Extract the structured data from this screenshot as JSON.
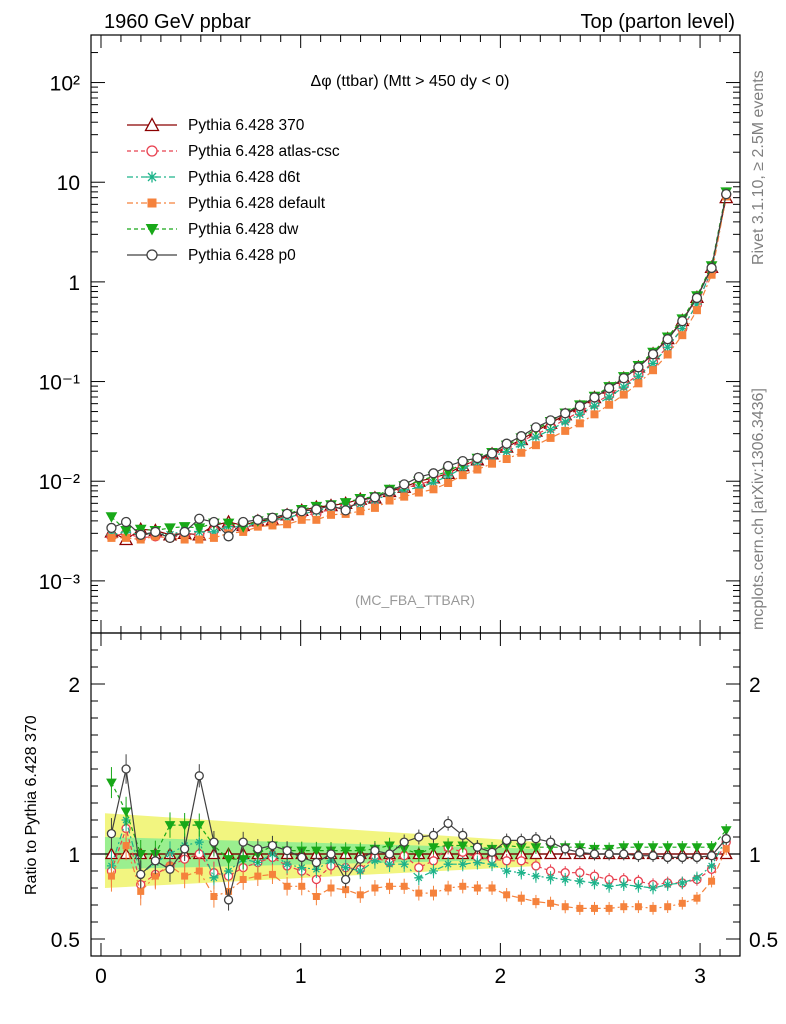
{
  "header": {
    "left": "1960 GeV ppbar",
    "right": "Top (parton level)"
  },
  "side": {
    "rivet": "Rivet 3.1.10, ≥ 2.5M events",
    "mcplots": "mcplots.cern.ch [arXiv:1306.3436]"
  },
  "chart_data": {
    "type": "line",
    "title": "Δφ (ttbar) (Mtt > 450 dy < 0)",
    "watermark": "(MC_FBA_TTBAR)",
    "xlabel": "",
    "ylabel": "",
    "ratio_ylabel": "Ratio to Pythia 6.428 370",
    "xlim": [
      -0.05,
      3.2
    ],
    "ylim_main": [
      0.0003,
      300
    ],
    "ylim_ratio": [
      0.4,
      2.3
    ],
    "yscale_main": "log",
    "legend_position": "top-left",
    "x_ticks": [
      "0",
      "1",
      "2",
      "3"
    ],
    "y_ticks_main": [
      "10⁻³",
      "10⁻²",
      "10⁻¹",
      "1",
      "10",
      "10²"
    ],
    "y_ticks_ratio": [
      "0.5",
      "1",
      "2"
    ],
    "x": [
      0.0524,
      0.1257,
      0.199,
      0.2723,
      0.3456,
      0.4189,
      0.4922,
      0.5655,
      0.6388,
      0.7121,
      0.7854,
      0.8587,
      0.932,
      1.0053,
      1.0786,
      1.1519,
      1.2252,
      1.2985,
      1.3718,
      1.4451,
      1.5184,
      1.5917,
      1.665,
      1.7383,
      1.8116,
      1.8849,
      1.9582,
      2.0315,
      2.1048,
      2.1781,
      2.2514,
      2.3247,
      2.398,
      2.4713,
      2.5446,
      2.6179,
      2.6912,
      2.7645,
      2.8378,
      2.9111,
      2.9844,
      3.0577,
      3.131
    ],
    "series": [
      {
        "name": "Pythia 6.428 370",
        "color": "#8b0000",
        "marker": "triangle-open",
        "dash": "solid",
        "values": [
          0.0031,
          0.0026,
          0.0033,
          0.0032,
          0.0029,
          0.003,
          0.0029,
          0.0036,
          0.0039,
          0.0036,
          0.004,
          0.0041,
          0.0046,
          0.0051,
          0.0055,
          0.0057,
          0.006,
          0.0066,
          0.0068,
          0.0079,
          0.0087,
          0.01,
          0.0108,
          0.012,
          0.0143,
          0.0164,
          0.0188,
          0.022,
          0.0262,
          0.0318,
          0.0382,
          0.0465,
          0.056,
          0.069,
          0.086,
          0.108,
          0.14,
          0.19,
          0.27,
          0.41,
          0.7,
          1.4,
          7.0
        ],
        "ratio": [
          1.0,
          1.0,
          1.0,
          1.0,
          1.0,
          1.0,
          1.0,
          1.0,
          1.0,
          1.0,
          1.0,
          1.0,
          1.0,
          1.0,
          1.0,
          1.0,
          1.0,
          1.0,
          1.0,
          1.0,
          1.0,
          1.0,
          1.0,
          1.0,
          1.0,
          1.0,
          1.0,
          1.0,
          1.0,
          1.0,
          1.0,
          1.0,
          1.0,
          1.0,
          1.0,
          1.0,
          1.0,
          1.0,
          1.0,
          1.0,
          1.0,
          1.0,
          1.0
        ]
      },
      {
        "name": "Pythia 6.428 atlas-csc",
        "color": "#e8404f",
        "marker": "circle-open",
        "dash": "dash",
        "values": [
          0.0028,
          0.003,
          0.0027,
          0.0028,
          0.0027,
          0.0029,
          0.0029,
          0.0032,
          0.0034,
          0.0033,
          0.0038,
          0.004,
          0.0043,
          0.0046,
          0.0047,
          0.0053,
          0.0055,
          0.006,
          0.0067,
          0.0075,
          0.0086,
          0.0092,
          0.0104,
          0.0125,
          0.0145,
          0.016,
          0.0183,
          0.0211,
          0.0252,
          0.0295,
          0.0345,
          0.0416,
          0.0497,
          0.0603,
          0.0731,
          0.0923,
          0.117,
          0.156,
          0.224,
          0.342,
          0.595,
          1.28,
          7.5
        ],
        "ratio": [
          0.9,
          1.15,
          0.82,
          0.88,
          0.93,
          0.97,
          1.0,
          0.89,
          0.87,
          0.92,
          0.95,
          0.98,
          0.93,
          0.9,
          0.85,
          0.93,
          0.92,
          0.91,
          0.98,
          0.95,
          0.99,
          0.92,
          0.96,
          1.04,
          1.01,
          0.98,
          0.97,
          0.96,
          0.96,
          0.93,
          0.9,
          0.89,
          0.89,
          0.87,
          0.85,
          0.85,
          0.84,
          0.82,
          0.83,
          0.83,
          0.85,
          0.91,
          1.07
        ]
      },
      {
        "name": "Pythia 6.428 d6t",
        "color": "#1db38a",
        "marker": "star",
        "dash": "dashdot",
        "values": [
          0.0029,
          0.0031,
          0.0029,
          0.003,
          0.0029,
          0.0032,
          0.0031,
          0.0031,
          0.0035,
          0.0035,
          0.0038,
          0.0041,
          0.0043,
          0.0047,
          0.005,
          0.0055,
          0.0055,
          0.0059,
          0.0065,
          0.0074,
          0.0082,
          0.0086,
          0.0097,
          0.0113,
          0.0135,
          0.0155,
          0.0177,
          0.0198,
          0.0234,
          0.0278,
          0.0329,
          0.0394,
          0.047,
          0.057,
          0.07,
          0.088,
          0.113,
          0.152,
          0.221,
          0.34,
          0.6,
          1.3,
          7.7
        ],
        "ratio": [
          0.93,
          1.2,
          0.88,
          0.95,
          1.0,
          1.05,
          1.07,
          0.86,
          0.9,
          0.97,
          0.95,
          1.0,
          0.94,
          0.92,
          0.91,
          0.96,
          0.92,
          0.9,
          0.96,
          0.94,
          0.94,
          0.86,
          0.9,
          0.94,
          0.94,
          0.95,
          0.94,
          0.9,
          0.89,
          0.87,
          0.86,
          0.85,
          0.84,
          0.83,
          0.81,
          0.82,
          0.81,
          0.8,
          0.82,
          0.83,
          0.86,
          0.93,
          1.09
        ]
      },
      {
        "name": "Pythia 6.428 default",
        "color": "#f5823c",
        "marker": "square-filled",
        "dash": "dashdot",
        "values": [
          0.0027,
          0.0027,
          0.0026,
          0.0028,
          0.0027,
          0.0026,
          0.0026,
          0.0027,
          0.003,
          0.0031,
          0.0035,
          0.0036,
          0.0037,
          0.0041,
          0.0041,
          0.0046,
          0.0047,
          0.005,
          0.0054,
          0.0064,
          0.007,
          0.0077,
          0.0083,
          0.0096,
          0.0115,
          0.0131,
          0.015,
          0.0167,
          0.0193,
          0.023,
          0.0272,
          0.032,
          0.0381,
          0.0469,
          0.0585,
          0.074,
          0.096,
          0.13,
          0.187,
          0.292,
          0.52,
          1.18,
          7.2
        ],
        "ratio": [
          0.87,
          1.05,
          0.78,
          0.87,
          0.93,
          0.87,
          0.9,
          0.75,
          0.78,
          0.85,
          0.87,
          0.88,
          0.81,
          0.81,
          0.75,
          0.8,
          0.79,
          0.76,
          0.8,
          0.81,
          0.81,
          0.77,
          0.77,
          0.8,
          0.81,
          0.8,
          0.8,
          0.76,
          0.74,
          0.72,
          0.71,
          0.69,
          0.68,
          0.68,
          0.68,
          0.69,
          0.69,
          0.68,
          0.69,
          0.71,
          0.74,
          0.84,
          1.03
        ]
      },
      {
        "name": "Pythia 6.428 dw",
        "color": "#18a818",
        "marker": "triangle-down-filled",
        "dash": "dash",
        "values": [
          0.0044,
          0.0032,
          0.0033,
          0.0032,
          0.0034,
          0.0035,
          0.0034,
          0.0038,
          0.0038,
          0.0035,
          0.004,
          0.0043,
          0.0047,
          0.0052,
          0.0056,
          0.0058,
          0.0061,
          0.0067,
          0.007,
          0.0083,
          0.009,
          0.01,
          0.0112,
          0.0126,
          0.015,
          0.017,
          0.0194,
          0.023,
          0.0272,
          0.0331,
          0.0397,
          0.0484,
          0.0583,
          0.0712,
          0.089,
          0.112,
          0.145,
          0.197,
          0.28,
          0.425,
          0.725,
          1.45,
          8.0
        ],
        "ratio": [
          1.42,
          1.25,
          1.0,
          1.0,
          1.17,
          1.17,
          1.17,
          1.05,
          0.97,
          0.97,
          1.0,
          1.05,
          1.02,
          1.02,
          1.02,
          1.02,
          1.02,
          1.02,
          1.03,
          1.05,
          1.03,
          1.0,
          1.04,
          1.05,
          1.05,
          1.04,
          1.03,
          1.05,
          1.04,
          1.04,
          1.04,
          1.04,
          1.04,
          1.03,
          1.03,
          1.04,
          1.04,
          1.04,
          1.04,
          1.04,
          1.04,
          1.04,
          1.14
        ]
      },
      {
        "name": "Pythia 6.428 p0",
        "color": "#404040",
        "marker": "circle-open",
        "dash": "solid",
        "values": [
          0.0034,
          0.0039,
          0.0029,
          0.0031,
          0.0027,
          0.0031,
          0.0042,
          0.0039,
          0.0028,
          0.0039,
          0.0041,
          0.0043,
          0.0047,
          0.005,
          0.0052,
          0.0057,
          0.0051,
          0.0064,
          0.0069,
          0.0079,
          0.0093,
          0.011,
          0.012,
          0.0142,
          0.0159,
          0.0171,
          0.019,
          0.0238,
          0.0283,
          0.0347,
          0.0408,
          0.048,
          0.0566,
          0.0693,
          0.086,
          0.108,
          0.139,
          0.188,
          0.266,
          0.404,
          0.69,
          1.38,
          7.6
        ],
        "ratio": [
          1.12,
          1.5,
          0.88,
          0.96,
          0.91,
          1.03,
          1.46,
          1.07,
          0.73,
          1.07,
          1.03,
          1.05,
          1.02,
          0.98,
          0.95,
          1.0,
          0.85,
          0.97,
          1.02,
          1.0,
          1.07,
          1.1,
          1.11,
          1.18,
          1.11,
          1.04,
          1.01,
          1.08,
          1.08,
          1.09,
          1.07,
          1.03,
          1.01,
          1.0,
          1.0,
          1.0,
          0.99,
          0.99,
          0.98,
          0.98,
          0.98,
          0.99,
          1.09
        ]
      }
    ]
  }
}
